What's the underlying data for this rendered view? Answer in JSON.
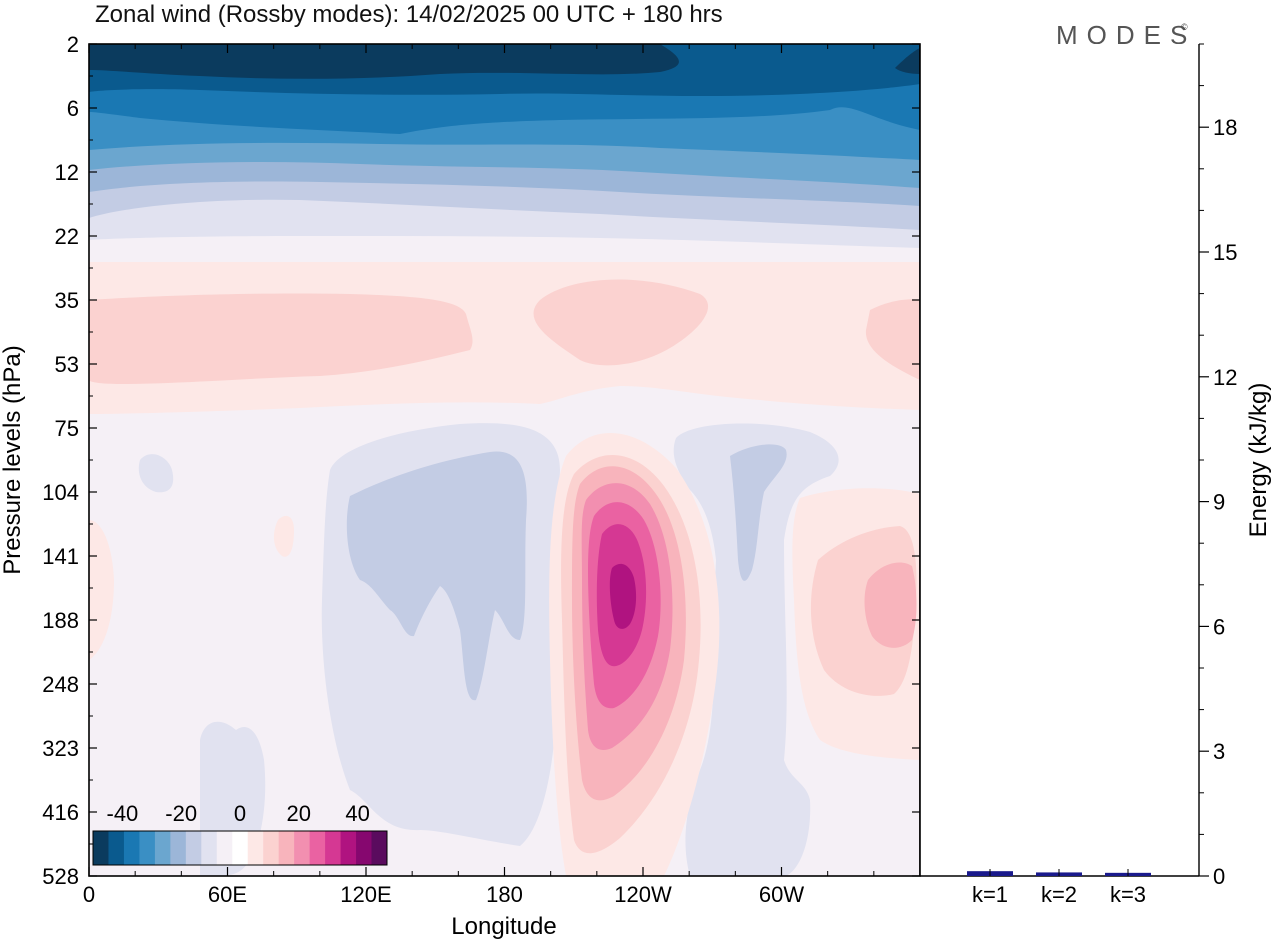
{
  "title": "Zonal wind (Rossby modes):  14/02/2025  00 UTC  + 180 hrs",
  "logo_text": "MODES",
  "logo_mark": "©",
  "chart_data": [
    {
      "type": "heatmap",
      "xlabel": "Longitude",
      "ylabel": "Pressure levels (hPa)",
      "x_ticks": [
        "0",
        "60E",
        "120E",
        "180",
        "120W",
        "60W"
      ],
      "x_tick_values": [
        0,
        60,
        120,
        180,
        240,
        300
      ],
      "xlim": [
        0,
        360
      ],
      "y_ticks": [
        "2",
        "6",
        "12",
        "22",
        "35",
        "53",
        "75",
        "104",
        "141",
        "188",
        "248",
        "323",
        "416",
        "528"
      ],
      "colorbar": {
        "labels": [
          "-40",
          "-20",
          "0",
          "20",
          "40"
        ],
        "label_values": [
          -40,
          -20,
          0,
          20,
          40
        ],
        "range": [
          -50,
          50
        ],
        "levels": [
          -45,
          -40,
          -35,
          -30,
          -25,
          -20,
          -15,
          -10,
          -5,
          0,
          5,
          10,
          15,
          20,
          25,
          30,
          35,
          40,
          45
        ],
        "colors": [
          "#0b3b5e",
          "#0a5a8e",
          "#1a78b3",
          "#3a8fc4",
          "#6ba6cf",
          "#9cb6d8",
          "#c3cce4",
          "#e1e2f0",
          "#f5f0f6",
          "#ffffff",
          "#fde8e6",
          "#fbd2d0",
          "#f8b4bc",
          "#f28fb0",
          "#ea62a2",
          "#d53893",
          "#b01380",
          "#86076f",
          "#5a0b5e"
        ]
      },
      "grid": false,
      "field_regions": [
        {
          "lon": [
            0,
            360
          ],
          "p_level": [
            2,
            4
          ],
          "u": -45
        },
        {
          "lon": [
            0,
            360
          ],
          "p_level": [
            4,
            8
          ],
          "u": -40
        },
        {
          "lon": [
            0,
            360
          ],
          "p_level": [
            8,
            12
          ],
          "u": -35
        },
        {
          "lon": [
            0,
            360
          ],
          "p_level": [
            12,
            16
          ],
          "u": -20
        },
        {
          "lon": [
            0,
            360
          ],
          "p_level": [
            16,
            22
          ],
          "u": -10
        },
        {
          "lon": [
            0,
            360
          ],
          "p_level": [
            22,
            35
          ],
          "u": 0
        },
        {
          "lon": [
            0,
            170
          ],
          "p_level": [
            35,
            53
          ],
          "u": 10
        },
        {
          "lon": [
            195,
            265
          ],
          "p_level": [
            35,
            53
          ],
          "u": 10
        },
        {
          "lon": [
            335,
            360
          ],
          "p_level": [
            35,
            53
          ],
          "u": 10
        },
        {
          "lon": [
            100,
            195
          ],
          "p_level": [
            75,
            416
          ],
          "u": -10
        },
        {
          "lon": [
            255,
            310
          ],
          "p_level": [
            75,
            528
          ],
          "u": -10
        },
        {
          "lon": [
            200,
            265
          ],
          "p_level": [
            104,
            416
          ],
          "u": 20
        },
        {
          "lon": [
            225,
            235
          ],
          "p_level": [
            141,
            188
          ],
          "u": 45
        },
        {
          "lon": [
            310,
            360
          ],
          "p_level": [
            104,
            323
          ],
          "u": 10
        }
      ]
    },
    {
      "type": "bar",
      "ylabel": "Energy (kJ/kg)",
      "categories": [
        "k=1",
        "k=2",
        "k=3"
      ],
      "values": [
        0.08,
        0.05,
        0.04
      ],
      "ylim": [
        0,
        20
      ],
      "y_ticks": [
        0,
        3,
        6,
        9,
        12,
        15,
        18
      ],
      "y_tick_labels": [
        "0",
        "3",
        "6",
        "9",
        "12",
        "15",
        "18"
      ],
      "bar_color": "#1a1a8c"
    }
  ]
}
